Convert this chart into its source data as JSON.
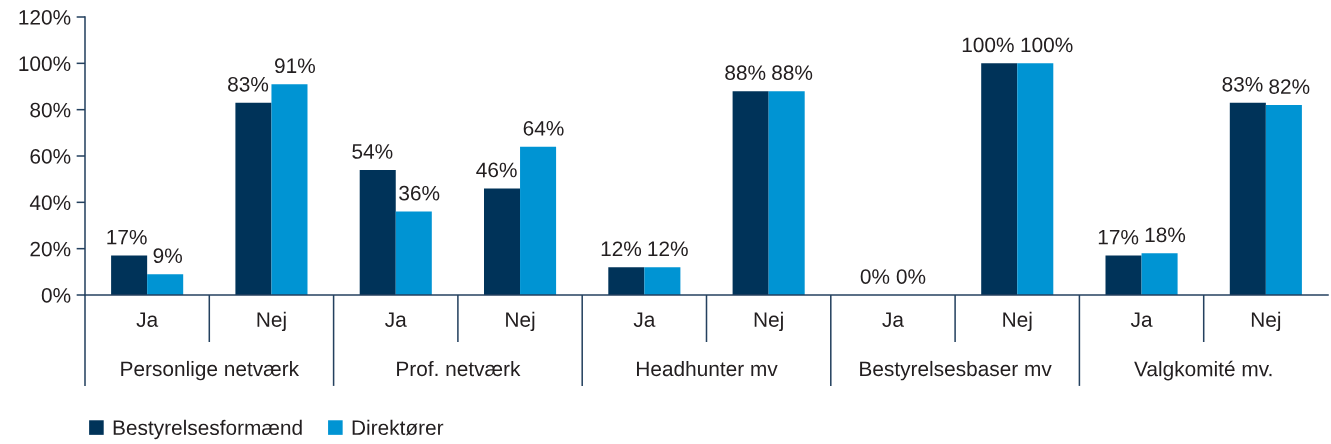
{
  "chart_data": {
    "type": "bar",
    "categories": [
      "Ja",
      "Nej",
      "Ja",
      "Nej",
      "Ja",
      "Nej",
      "Ja",
      "Nej",
      "Ja",
      "Nej"
    ],
    "series": [
      {
        "name": "Bestyrelsesformænd",
        "color": "#003359",
        "values": [
          17,
          83,
          54,
          46,
          12,
          88,
          0,
          100,
          17,
          83
        ],
        "value_labels": [
          "17%",
          "83%",
          "54%",
          "46%",
          "12%",
          "88%",
          "0%",
          "100%",
          "17%",
          "83%"
        ]
      },
      {
        "name": "Direktører",
        "color": "#0094d3",
        "values": [
          9,
          91,
          36,
          64,
          12,
          88,
          0,
          100,
          18,
          82
        ],
        "value_labels": [
          "9%",
          "91%",
          "36%",
          "64%",
          "12%",
          "88%",
          "0%",
          "100%",
          "18%",
          "82%"
        ]
      }
    ],
    "ylim": [
      0,
      120
    ],
    "yticks": [
      {
        "value": 0,
        "label": "0%"
      },
      {
        "value": 20,
        "label": "20%"
      },
      {
        "value": 40,
        "label": "40%"
      },
      {
        "value": 60,
        "label": "60%"
      },
      {
        "value": 80,
        "label": "80%"
      },
      {
        "value": 100,
        "label": "100%"
      },
      {
        "value": 120,
        "label": "120%"
      }
    ],
    "legend": "bottom left",
    "annotations": [
      "Personlige netværk",
      "Prof. netværk",
      "Headhunter mv",
      "Bestyrelsesbaser mv",
      "Valgkomité mv."
    ]
  }
}
